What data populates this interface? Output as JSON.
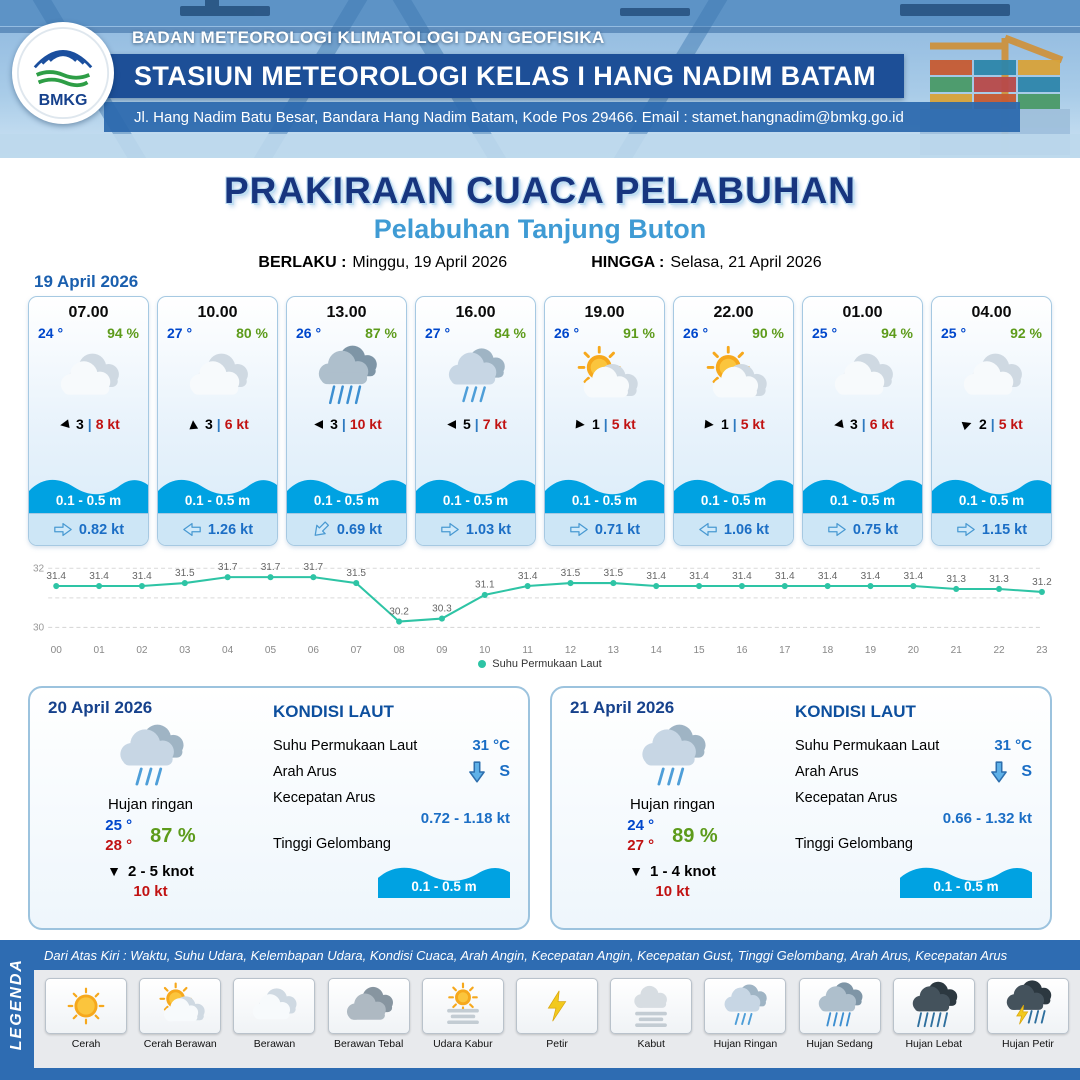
{
  "colors": {
    "header_blue": "#1d4f97",
    "accent_light_blue": "#3f9bd4",
    "temp_blue": "#0047cc",
    "humidity_green": "#5d9b1b",
    "gust_red": "#c11212",
    "wave_blue": "#00a2e2",
    "line_teal": "#2ec4a5",
    "strip_blue": "#2e6cb2"
  },
  "header": {
    "logo_text": "BMKG",
    "org": "BADAN METEOROLOGI KLIMATOLOGI DAN GEOFISIKA",
    "station": "STASIUN METEOROLOGI KELAS I HANG NADIM BATAM",
    "address": "Jl. Hang Nadim Batu Besar, Bandara Hang Nadim Batam, Kode Pos 29466. Email : stamet.hangnadim@bmkg.go.id"
  },
  "title": {
    "main": "PRAKIRAAN CUACA PELABUHAN",
    "sub": "Pelabuhan Tanjung Buton",
    "berlaku_label": "BERLAKU :",
    "berlaku_value": "Minggu, 19 April 2026",
    "hingga_label": "HINGGA :",
    "hingga_value": "Selasa, 21 April 2026"
  },
  "forecast": {
    "date": "19 April 2026",
    "cards": [
      {
        "time": "07.00",
        "temp": "24 °",
        "rh": "94 %",
        "icon": "berawan",
        "wind_rot": -100,
        "wind": "3",
        "gust": "8 kt",
        "wave": "0.1 - 0.5 m",
        "cur_rot": 0,
        "current": "0.82 kt"
      },
      {
        "time": "10.00",
        "temp": "27 °",
        "rh": "80 %",
        "icon": "berawan",
        "wind_rot": -5,
        "wind": "3",
        "gust": "6 kt",
        "wave": "0.1 - 0.5 m",
        "cur_rot": 180,
        "current": "1.26 kt"
      },
      {
        "time": "13.00",
        "temp": "26 °",
        "rh": "87 %",
        "icon": "hujan-sedang",
        "wind_rot": -90,
        "wind": "3",
        "gust": "10 kt",
        "wave": "0.1 - 0.5 m",
        "cur_rot": 135,
        "current": "0.69 kt"
      },
      {
        "time": "16.00",
        "temp": "27 °",
        "rh": "84 %",
        "icon": "hujan-ringan",
        "wind_rot": -90,
        "wind": "5",
        "gust": "7 kt",
        "wave": "0.1 - 0.5 m",
        "cur_rot": 0,
        "current": "1.03 kt"
      },
      {
        "time": "19.00",
        "temp": "26 °",
        "rh": "91 %",
        "icon": "cerah-berawan",
        "wind_rot": 95,
        "wind": "1",
        "gust": "5 kt",
        "wave": "0.1 - 0.5 m",
        "cur_rot": 0,
        "current": "0.71 kt"
      },
      {
        "time": "22.00",
        "temp": "26 °",
        "rh": "90 %",
        "icon": "cerah-berawan",
        "wind_rot": 95,
        "wind": "1",
        "gust": "5 kt",
        "wave": "0.1 - 0.5 m",
        "cur_rot": 180,
        "current": "1.06 kt"
      },
      {
        "time": "01.00",
        "temp": "25 °",
        "rh": "94 %",
        "icon": "berawan",
        "wind_rot": -100,
        "wind": "3",
        "gust": "6 kt",
        "wave": "0.1 - 0.5 m",
        "cur_rot": 0,
        "current": "0.75 kt"
      },
      {
        "time": "04.00",
        "temp": "25 °",
        "rh": "92 %",
        "icon": "berawan",
        "wind_rot": 70,
        "wind": "2",
        "gust": "5 kt",
        "wave": "0.1 - 0.5 m",
        "cur_rot": 0,
        "current": "1.15 kt"
      }
    ]
  },
  "chart_data": {
    "type": "line",
    "series_label": "Suhu Permukaan Laut",
    "x": [
      "00",
      "01",
      "02",
      "03",
      "04",
      "05",
      "06",
      "07",
      "08",
      "09",
      "10",
      "11",
      "12",
      "13",
      "14",
      "15",
      "16",
      "17",
      "18",
      "19",
      "20",
      "21",
      "22",
      "23"
    ],
    "values": [
      31.4,
      31.4,
      31.4,
      31.5,
      31.7,
      31.7,
      31.7,
      31.5,
      30.2,
      30.3,
      31.1,
      31.4,
      31.5,
      31.5,
      31.4,
      31.4,
      31.4,
      31.4,
      31.4,
      31.4,
      31.4,
      31.3,
      31.3,
      31.2
    ],
    "ylim": [
      30,
      32
    ],
    "yticks": [
      32,
      31,
      30
    ],
    "grid": "dashed-horizontal",
    "legend_position": "bottom"
  },
  "daily": [
    {
      "date": "20 April 2026",
      "icon": "hujan-ringan",
      "condition": "Hujan ringan",
      "tmin": "25 °",
      "tmax": "28 °",
      "rh": "87 %",
      "wind": "2  - 5 knot",
      "gust": "10 kt",
      "sea": {
        "title": "KONDISI LAUT",
        "sst_label": "Suhu Permukaan Laut",
        "sst": "31 °C",
        "dir_label": "Arah Arus",
        "dir": "S",
        "speed_label": "Kecepatan Arus",
        "speed": "0.72  - 1.18 kt",
        "wave_label": "Tinggi Gelombang",
        "wave": "0.1 - 0.5 m"
      }
    },
    {
      "date": "21 April 2026",
      "icon": "hujan-ringan",
      "condition": "Hujan ringan",
      "tmin": "24 °",
      "tmax": "27 °",
      "rh": "89 %",
      "wind": "1  - 4 knot",
      "gust": "10 kt",
      "sea": {
        "title": "KONDISI LAUT",
        "sst_label": "Suhu Permukaan Laut",
        "sst": "31 °C",
        "dir_label": "Arah Arus",
        "dir": "S",
        "speed_label": "Kecepatan Arus",
        "speed": "0.66  - 1.32 kt",
        "wave_label": "Tinggi Gelombang",
        "wave": "0.1 - 0.5 m"
      }
    }
  ],
  "legend": {
    "title": "LEGENDA",
    "note": "Dari Atas Kiri : Waktu, Suhu Udara, Kelembapan Udara, Kondisi Cuaca, Arah Angin, Kecepatan Angin, Kecepatan Gust, Tinggi Gelombang, Arah Arus, Kecepatan Arus",
    "items": [
      {
        "label": "Cerah",
        "icon": "cerah"
      },
      {
        "label": "Cerah Berawan",
        "icon": "cerah-berawan"
      },
      {
        "label": "Berawan",
        "icon": "berawan"
      },
      {
        "label": "Berawan Tebal",
        "icon": "berawan-tebal"
      },
      {
        "label": "Udara Kabur",
        "icon": "udara-kabur"
      },
      {
        "label": "Petir",
        "icon": "petir"
      },
      {
        "label": "Kabut",
        "icon": "kabut"
      },
      {
        "label": "Hujan Ringan",
        "icon": "hujan-ringan"
      },
      {
        "label": "Hujan Sedang",
        "icon": "hujan-sedang"
      },
      {
        "label": "Hujan Lebat",
        "icon": "hujan-lebat"
      },
      {
        "label": "Hujan Petir",
        "icon": "hujan-petir"
      }
    ]
  }
}
